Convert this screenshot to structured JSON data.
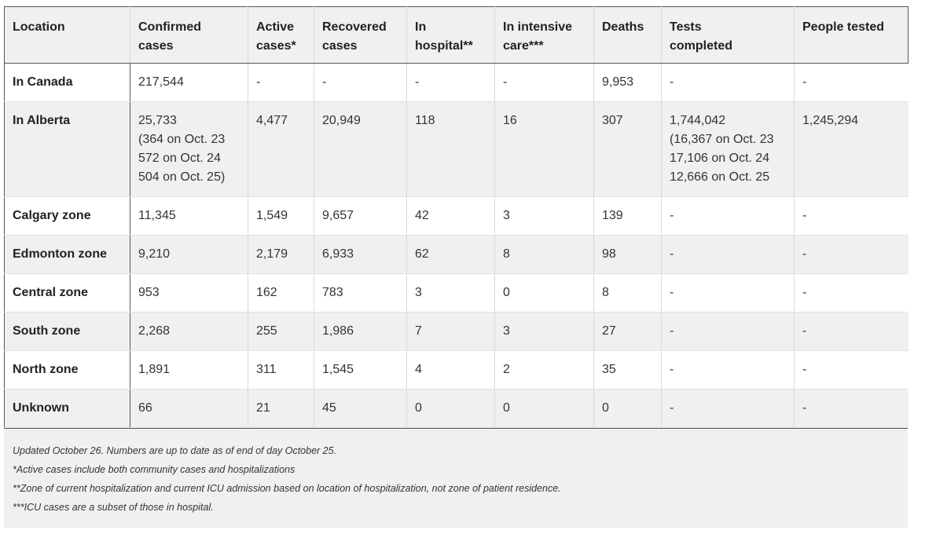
{
  "table": {
    "headers": [
      "Location",
      "Confirmed\ncases",
      "Active\ncases*",
      "Recovered\ncases",
      "In\nhospital**",
      "In intensive\ncare***",
      "Deaths",
      "Tests\ncompleted",
      "People tested"
    ],
    "rows": [
      [
        "In Canada",
        "217,544",
        "-",
        "-",
        "-",
        "-",
        "9,953",
        "-",
        "-"
      ],
      [
        "In Alberta",
        "25,733\n(364 on Oct. 23\n572 on Oct. 24\n504 on Oct. 25)",
        "4,477",
        "20,949",
        "118",
        "16",
        "307",
        "1,744,042\n(16,367 on Oct. 23\n17,106 on Oct. 24\n12,666 on Oct. 25",
        "1,245,294"
      ],
      [
        "Calgary zone",
        "11,345",
        "1,549",
        "9,657",
        "42",
        "3",
        "139",
        "-",
        "-"
      ],
      [
        "Edmonton zone",
        "9,210",
        "2,179",
        "6,933",
        "62",
        "8",
        "98",
        "-",
        "-"
      ],
      [
        "Central zone",
        "953",
        "162",
        "783",
        "3",
        "0",
        "8",
        "-",
        "-"
      ],
      [
        "South zone",
        "2,268",
        "255",
        "1,986",
        "7",
        "3",
        "27",
        "-",
        "-"
      ],
      [
        "North zone",
        "1,891",
        "311",
        "1,545",
        "4",
        "2",
        "35",
        "-",
        "-"
      ],
      [
        "Unknown",
        "66",
        "21",
        "45",
        "0",
        "0",
        "0",
        "-",
        "-"
      ]
    ]
  },
  "notes": [
    "Updated October 26. Numbers are up to date as of end of day October 25.",
    "*Active cases include both community cases and hospitalizations",
    "**Zone of current hospitalization and current ICU admission based on location of hospitalization, not zone of patient residence.",
    "***ICU cases are a subset of those in hospital."
  ],
  "colors": {
    "header_bg": "#f0f0f0",
    "stripe_bg": "#f0f0f0",
    "border_dark": "#555555"
  }
}
